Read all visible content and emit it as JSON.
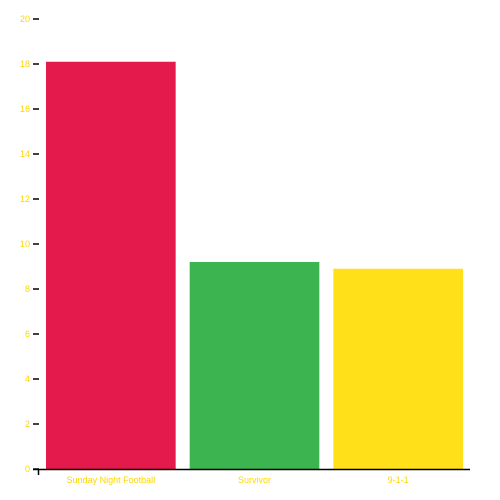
{
  "chart_data": {
    "type": "bar",
    "title": "",
    "xlabel": "",
    "ylabel": "",
    "categories": [
      "Sunday Night Football",
      "Survivor",
      "9-1-1"
    ],
    "values": [
      18.1,
      9.2,
      8.9
    ],
    "ylim": [
      0,
      20
    ],
    "y_ticks": [
      "0",
      "2",
      "4",
      "6",
      "8",
      "10",
      "12",
      "14",
      "16",
      "18",
      "20"
    ],
    "grid": false,
    "legend": "none",
    "colors": {
      "bars": [
        "#e31a4b",
        "#3cb550",
        "#ffe019"
      ],
      "tick_label": "#ffd700",
      "axis": "#000000"
    }
  }
}
